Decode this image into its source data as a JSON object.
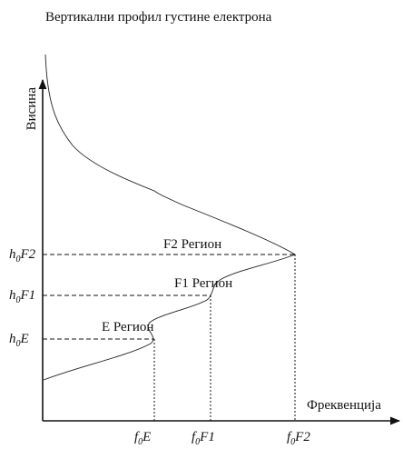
{
  "title": "Вертикални профил густине електрона",
  "y_axis_label": "Висина",
  "x_axis_label": "Фреквенција",
  "regions": [
    "F2 Регион",
    "F1 Регион",
    "E Регион"
  ],
  "height_labels": [
    {
      "base": "h",
      "sub": "0",
      "rest": "F2"
    },
    {
      "base": "h",
      "sub": "0",
      "rest": "F1"
    },
    {
      "base": "h",
      "sub": "0",
      "rest": "E"
    }
  ],
  "frequency_labels": [
    {
      "base": "f",
      "sub": "0",
      "rest": "E"
    },
    {
      "base": "f",
      "sub": "0",
      "rest": "F1"
    },
    {
      "base": "f",
      "sub": "0",
      "rest": "F2"
    }
  ]
}
